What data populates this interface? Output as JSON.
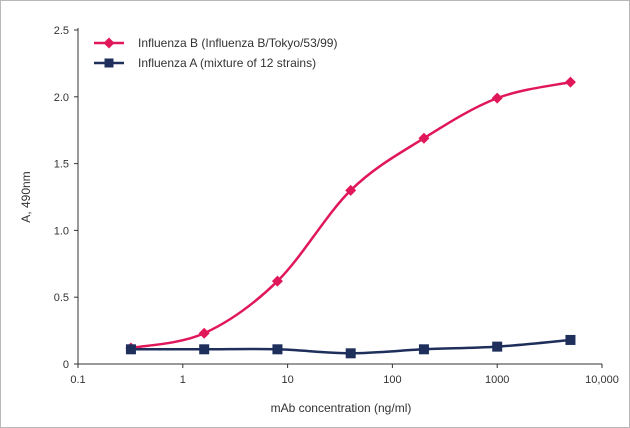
{
  "chart_data": {
    "type": "line",
    "xscale": "log",
    "xlim": [
      0.1,
      10000
    ],
    "ylim": [
      0,
      2.5
    ],
    "xticks": [
      0.1,
      1,
      10,
      100,
      1000,
      10000
    ],
    "xtick_labels": [
      "0.1",
      "1",
      "10",
      "100",
      "1000",
      "10,000"
    ],
    "yticks": [
      0,
      0.5,
      1.0,
      1.5,
      2.0,
      2.5
    ],
    "ytick_labels": [
      "0",
      "0.5",
      "1.0",
      "1.5",
      "2.0",
      "2.5"
    ],
    "xlabel": "mAb concentration (ng/ml)",
    "ylabel": "A, 490nm",
    "grid": false,
    "legend_position": "top-left",
    "series": [
      {
        "name": "Influenza B (Influenza B/Tokyo/53/99)",
        "color": "#e0185a",
        "marker": "diamond",
        "points": [
          {
            "x": 0.32,
            "y": 0.12
          },
          {
            "x": 1.6,
            "y": 0.23
          },
          {
            "x": 8,
            "y": 0.62
          },
          {
            "x": 40,
            "y": 1.3
          },
          {
            "x": 200,
            "y": 1.69
          },
          {
            "x": 1000,
            "y": 1.99
          },
          {
            "x": 5000,
            "y": 2.11
          }
        ]
      },
      {
        "name": "Influenza A (mixture of 12 strains)",
        "color": "#1e2f5c",
        "marker": "square",
        "points": [
          {
            "x": 0.32,
            "y": 0.11
          },
          {
            "x": 1.6,
            "y": 0.11
          },
          {
            "x": 8,
            "y": 0.11
          },
          {
            "x": 40,
            "y": 0.08
          },
          {
            "x": 200,
            "y": 0.11
          },
          {
            "x": 1000,
            "y": 0.13
          },
          {
            "x": 5000,
            "y": 0.18
          }
        ]
      }
    ]
  }
}
